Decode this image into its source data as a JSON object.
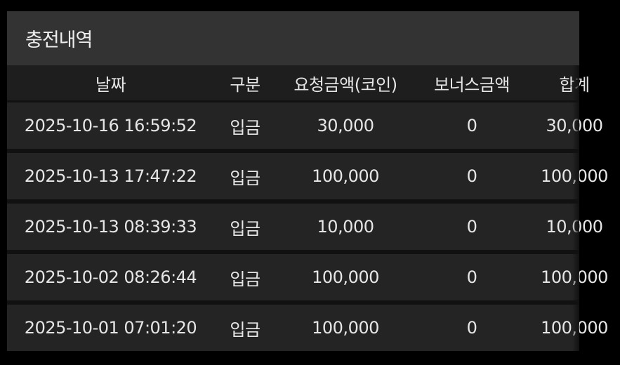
{
  "title": "충전내역",
  "columns": [
    "날짜",
    "구분",
    "요청금액(코인)",
    "보너스금액",
    "합계"
  ],
  "rows": [
    [
      "2025-10-16 16:59:52",
      "입금",
      "30,000",
      "0",
      "30,000"
    ],
    [
      "2025-10-13 17:47:22",
      "입금",
      "100,000",
      "0",
      "100,000"
    ],
    [
      "2025-10-13 08:39:33",
      "입금",
      "10,000",
      "0",
      "10,000"
    ],
    [
      "2025-10-02 08:26:44",
      "입금",
      "100,000",
      "0",
      "100,000"
    ],
    [
      "2025-10-01 07:01:20",
      "입금",
      "100,000",
      "0",
      "100,000"
    ]
  ]
}
